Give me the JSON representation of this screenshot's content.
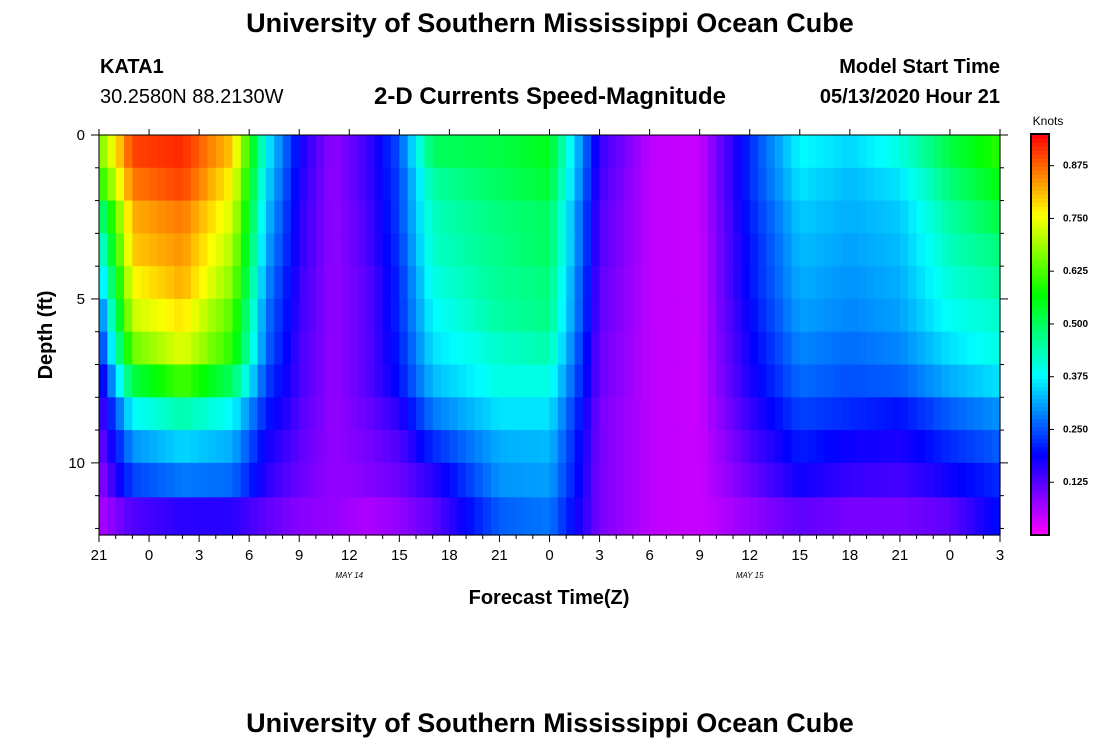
{
  "header": {
    "title": "University of Southern Mississippi Ocean Cube",
    "station_id": "KATA1",
    "station_coords": "30.2580N 88.2130W",
    "model_start_label": "Model Start Time",
    "model_start_value": "05/13/2020 Hour 21"
  },
  "footer": {
    "title": "University of Southern Mississippi Ocean Cube"
  },
  "chart_data": {
    "type": "heatmap",
    "title": "2-D Currents Speed-Magnitude",
    "xlabel": "Forecast Time(Z)",
    "ylabel": "Depth (ft)",
    "x_tick_labels": [
      "21",
      "0",
      "3",
      "6",
      "9",
      "12",
      "15",
      "18",
      "21",
      "0",
      "3",
      "6",
      "9",
      "12",
      "15",
      "18",
      "21",
      "0",
      "3"
    ],
    "x_range_hours": [
      0,
      54
    ],
    "date_annotations": [
      {
        "text": "MAY 14",
        "hour": 15
      },
      {
        "text": "MAY 15",
        "hour": 39
      }
    ],
    "y_tick_labels": [
      "0",
      "5",
      "10"
    ],
    "y_tick_values": [
      0,
      5,
      10
    ],
    "ylim": [
      0,
      12.2
    ],
    "colorbar": {
      "label": "Knots",
      "tick_labels": [
        "0.875",
        "0.750",
        "0.625",
        "0.500",
        "0.375",
        "0.250",
        "0.125"
      ],
      "tick_values": [
        0.875,
        0.75,
        0.625,
        0.5,
        0.375,
        0.25,
        0.125
      ],
      "range": [
        0,
        0.95
      ]
    },
    "depth_levels_ft": [
      0.5,
      1.5,
      2.5,
      3.5,
      4.5,
      5.5,
      6.5,
      7.5,
      8.5,
      9.5,
      10.5,
      11.6
    ],
    "time_anchor_hours": [
      0,
      2,
      5,
      8,
      10,
      12,
      14,
      16,
      18,
      20,
      24,
      27,
      30,
      33,
      36,
      39,
      42,
      45,
      48,
      51,
      54
    ],
    "speed_by_depth": [
      [
        0.65,
        0.9,
        0.92,
        0.8,
        0.38,
        0.18,
        0.08,
        0.14,
        0.25,
        0.5,
        0.52,
        0.55,
        0.15,
        0.05,
        0.04,
        0.22,
        0.38,
        0.35,
        0.4,
        0.52,
        0.6
      ],
      [
        0.58,
        0.86,
        0.9,
        0.76,
        0.36,
        0.17,
        0.08,
        0.14,
        0.24,
        0.45,
        0.5,
        0.53,
        0.14,
        0.05,
        0.04,
        0.22,
        0.36,
        0.33,
        0.36,
        0.48,
        0.56
      ],
      [
        0.45,
        0.82,
        0.86,
        0.73,
        0.34,
        0.16,
        0.08,
        0.13,
        0.24,
        0.43,
        0.48,
        0.5,
        0.13,
        0.05,
        0.04,
        0.21,
        0.34,
        0.32,
        0.34,
        0.45,
        0.52
      ],
      [
        0.38,
        0.8,
        0.84,
        0.7,
        0.32,
        0.16,
        0.08,
        0.13,
        0.23,
        0.42,
        0.47,
        0.5,
        0.13,
        0.05,
        0.04,
        0.2,
        0.33,
        0.31,
        0.33,
        0.43,
        0.48
      ],
      [
        0.32,
        0.76,
        0.82,
        0.67,
        0.3,
        0.15,
        0.08,
        0.12,
        0.22,
        0.4,
        0.46,
        0.48,
        0.12,
        0.05,
        0.04,
        0.2,
        0.32,
        0.3,
        0.32,
        0.41,
        0.45
      ],
      [
        0.25,
        0.72,
        0.78,
        0.63,
        0.28,
        0.15,
        0.08,
        0.12,
        0.22,
        0.38,
        0.45,
        0.47,
        0.12,
        0.05,
        0.04,
        0.19,
        0.31,
        0.29,
        0.31,
        0.39,
        0.42
      ],
      [
        0.2,
        0.65,
        0.74,
        0.6,
        0.27,
        0.14,
        0.08,
        0.12,
        0.21,
        0.36,
        0.42,
        0.44,
        0.11,
        0.05,
        0.04,
        0.18,
        0.29,
        0.27,
        0.29,
        0.36,
        0.4
      ],
      [
        0.15,
        0.52,
        0.62,
        0.5,
        0.24,
        0.14,
        0.08,
        0.12,
        0.2,
        0.33,
        0.4,
        0.4,
        0.11,
        0.05,
        0.04,
        0.17,
        0.27,
        0.25,
        0.26,
        0.32,
        0.36
      ],
      [
        0.12,
        0.38,
        0.44,
        0.38,
        0.21,
        0.13,
        0.08,
        0.11,
        0.16,
        0.28,
        0.36,
        0.36,
        0.1,
        0.05,
        0.04,
        0.15,
        0.24,
        0.22,
        0.2,
        0.26,
        0.3
      ],
      [
        0.1,
        0.3,
        0.35,
        0.32,
        0.18,
        0.12,
        0.08,
        0.1,
        0.13,
        0.22,
        0.32,
        0.33,
        0.1,
        0.05,
        0.04,
        0.13,
        0.21,
        0.18,
        0.17,
        0.22,
        0.26
      ],
      [
        0.08,
        0.24,
        0.28,
        0.27,
        0.16,
        0.11,
        0.08,
        0.09,
        0.11,
        0.16,
        0.3,
        0.31,
        0.1,
        0.05,
        0.04,
        0.11,
        0.18,
        0.15,
        0.14,
        0.18,
        0.22
      ],
      [
        0.06,
        0.13,
        0.16,
        0.16,
        0.12,
        0.09,
        0.08,
        0.06,
        0.08,
        0.12,
        0.26,
        0.28,
        0.1,
        0.05,
        0.04,
        0.08,
        0.12,
        0.1,
        0.1,
        0.12,
        0.2
      ]
    ]
  }
}
